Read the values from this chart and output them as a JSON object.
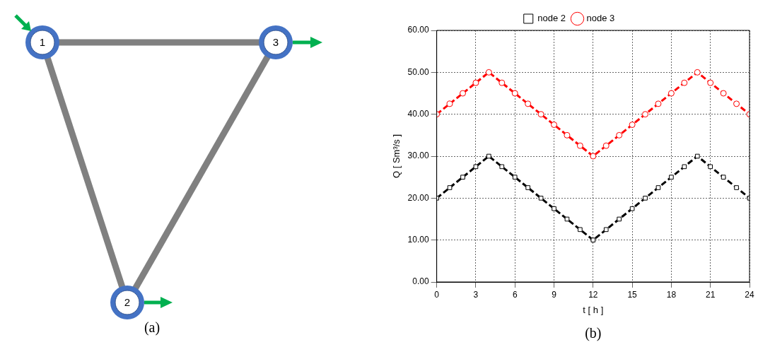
{
  "chart_data": [
    {
      "type": "other",
      "annotations": [
        "1",
        "2",
        "3",
        "(a)"
      ]
    },
    {
      "type": "line",
      "xlabel": "t [ h ]",
      "ylabel": "Q [ Sm³/s ]",
      "annotations": [
        "(b)"
      ],
      "x": [
        0,
        1,
        2,
        3,
        4,
        5,
        6,
        7,
        8,
        9,
        10,
        11,
        12,
        13,
        14,
        15,
        16,
        17,
        18,
        19,
        20,
        21,
        22,
        23,
        24
      ],
      "series": [
        {
          "name": "node 2",
          "color": "#000000",
          "marker": "square",
          "values": [
            20,
            22.5,
            25,
            27.5,
            30,
            27.5,
            25,
            22.5,
            20,
            17.5,
            15,
            12.5,
            10,
            12.5,
            15,
            17.5,
            20,
            22.5,
            25,
            27.5,
            30,
            27.5,
            25,
            22.5,
            20
          ]
        },
        {
          "name": "node 3",
          "color": "#ff0000",
          "marker": "circle",
          "values": [
            40,
            42.5,
            45,
            47.5,
            50,
            47.5,
            45,
            42.5,
            40,
            37.5,
            35,
            32.5,
            30,
            32.5,
            35,
            37.5,
            40,
            42.5,
            45,
            47.5,
            50,
            47.5,
            45,
            42.5,
            40
          ]
        }
      ],
      "xlim": [
        0,
        24
      ],
      "xticks": [
        0,
        3,
        6,
        9,
        12,
        15,
        18,
        21,
        24
      ],
      "ylim": [
        0,
        60
      ],
      "yticks": [
        {
          "value": 0,
          "label": "0.00"
        },
        {
          "value": 10,
          "label": "10.00"
        },
        {
          "value": 20,
          "label": "20.00"
        },
        {
          "value": 30,
          "label": "30.00"
        },
        {
          "value": 40,
          "label": "40.00"
        },
        {
          "value": 50,
          "label": "50.00"
        },
        {
          "value": 60,
          "label": "60.00"
        }
      ],
      "grid": true,
      "legend": "top",
      "line_style": "dashed"
    }
  ]
}
